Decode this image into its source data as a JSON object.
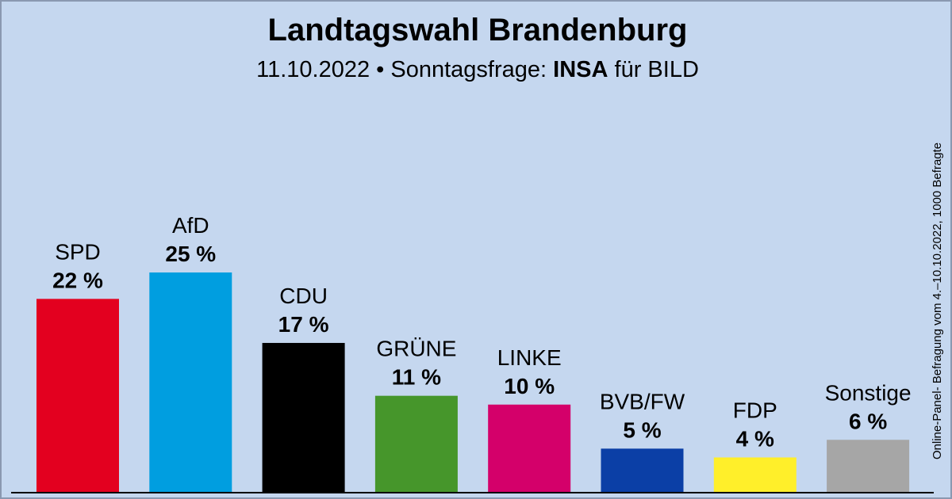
{
  "chart_data": {
    "type": "bar",
    "title": "Landtagswahl Brandenburg",
    "subtitle": {
      "date": "11.10.2022",
      "separator": "•",
      "label": "Sonntagsfrage:",
      "institute": "INSA",
      "client": "für BILD"
    },
    "source_note": "Online-Panel- Befragung vom 4.–10.10.2022, 1000 Befragte",
    "unit": "%",
    "categories": [
      "SPD",
      "AfD",
      "CDU",
      "GRÜNE",
      "LINKE",
      "BVB/FW",
      "FDP",
      "Sonstige"
    ],
    "values": [
      22,
      25,
      17,
      11,
      10,
      5,
      4,
      6
    ],
    "value_labels": [
      "22 %",
      "25 %",
      "17 %",
      "11 %",
      "10 %",
      "5 %",
      "4 %",
      "6 %"
    ],
    "colors": [
      "#e3001f",
      "#009ee0",
      "#000000",
      "#46962b",
      "#d4006a",
      "#0b3fa6",
      "#ffef2a",
      "#a6a6a6"
    ],
    "xlabel": "",
    "ylabel": "",
    "ylim": [
      0,
      25
    ],
    "grid": false,
    "legend": "none"
  }
}
